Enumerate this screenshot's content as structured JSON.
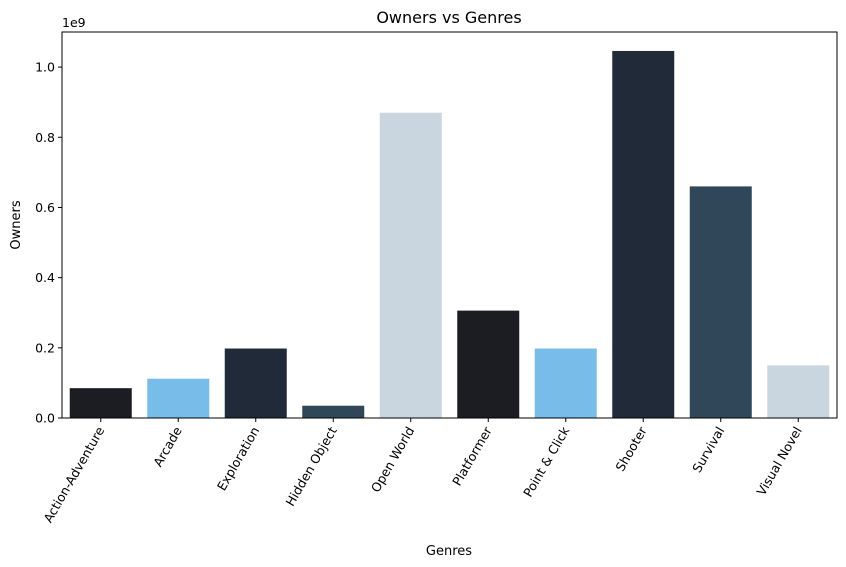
{
  "chart_data": {
    "type": "bar",
    "title": "Owners vs Genres",
    "xlabel": "Genres",
    "ylabel": "Owners",
    "offset_text": "1e9",
    "categories": [
      "Action-Adventure",
      "Arcade",
      "Exploration",
      "Hidden Object",
      "Open World",
      "Platformer",
      "Point & Click",
      "Shooter",
      "Survival",
      "Visual Novel"
    ],
    "values": [
      85000000,
      112000000,
      198000000,
      35000000,
      870000000,
      306000000,
      198000000,
      1046000000,
      660000000,
      150000000
    ],
    "colors": [
      "#1b1d22",
      "#78bde9",
      "#212a38",
      "#304659",
      "#cad6df",
      "#1b1d22",
      "#78bde9",
      "#212a38",
      "#304659",
      "#cad6df"
    ],
    "yticks": [
      0.0,
      0.2,
      0.4,
      0.6,
      0.8,
      1.0
    ],
    "ytick_labels": [
      "0.0",
      "0.2",
      "0.4",
      "0.6",
      "0.8",
      "1.0"
    ],
    "ylim": [
      0,
      1100000000
    ],
    "grid": false,
    "legend": "none"
  }
}
